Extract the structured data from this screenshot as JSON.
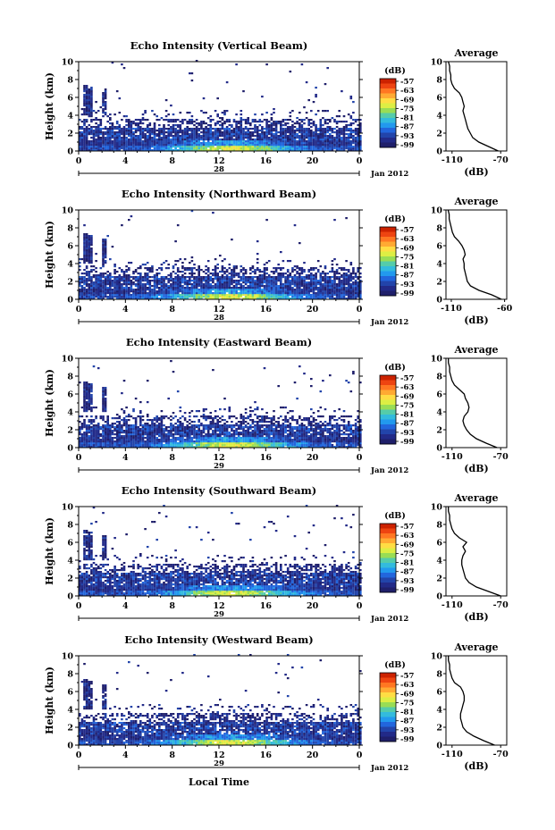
{
  "figure": {
    "xlabel": "Local Time"
  },
  "colorbar": {
    "label": "(dB)",
    "ticks": [
      "-57",
      "-63",
      "-69",
      "-75",
      "-81",
      "-87",
      "-93",
      "-99"
    ],
    "colors": [
      "#cc2200",
      "#ee4411",
      "#ff7722",
      "#ffaa33",
      "#ffdd44",
      "#ddee44",
      "#99dd55",
      "#55ccaa",
      "#33bbdd",
      "#2299ee",
      "#2266dd",
      "#2244aa",
      "#222a88",
      "#1f1f6a"
    ]
  },
  "profile_panel": {
    "title": "Average",
    "xlabel": "(dB)",
    "yticks": [
      "0",
      "2",
      "4",
      "6",
      "8",
      "10"
    ]
  },
  "main_axes": {
    "ylabel": "Height (km)",
    "yticks": [
      "0",
      "2",
      "4",
      "6",
      "8",
      "10"
    ],
    "xticks": [
      "0",
      "4",
      "8",
      "12",
      "16",
      "20",
      "0"
    ],
    "date_label": "Jan 2012"
  },
  "chart_data": [
    {
      "type": "heatmap",
      "title": "Echo Intensity (Vertical Beam)",
      "xlabel": "",
      "ylabel": "Height (km)",
      "xlim": [
        0,
        24
      ],
      "ylim": [
        0,
        10
      ],
      "day_label": "28",
      "date_label": "Jan 2012",
      "profile": {
        "title": "Average",
        "xlabel": "(dB)",
        "xticks": [
          "-110",
          "-70"
        ],
        "xlim": [
          -115,
          -65
        ],
        "heights": [
          0,
          0.5,
          1,
          1.5,
          2,
          2.5,
          3,
          3.5,
          4,
          4.5,
          5,
          5.5,
          6,
          6.5,
          7,
          7.5,
          8,
          8.5,
          9,
          9.5,
          10
        ],
        "values": [
          -72,
          -80,
          -88,
          -93,
          -95,
          -97,
          -98,
          -99,
          -100,
          -101,
          -100,
          -101,
          -102,
          -104,
          -108,
          -110,
          -111,
          -111,
          -112,
          -112,
          -113
        ]
      }
    },
    {
      "type": "heatmap",
      "title": "Echo Intensity (Northward Beam)",
      "xlabel": "",
      "ylabel": "Height (km)",
      "xlim": [
        0,
        24
      ],
      "ylim": [
        0,
        10
      ],
      "day_label": "28",
      "date_label": "Jan 2012",
      "profile": {
        "title": "Average",
        "xlabel": "(dB)",
        "xticks": [
          "-110",
          "-60"
        ],
        "xlim": [
          -115,
          -58
        ],
        "heights": [
          0,
          0.5,
          1,
          1.5,
          2,
          2.5,
          3,
          3.5,
          4,
          4.5,
          5,
          5.5,
          6,
          6.5,
          7,
          7.5,
          8,
          8.5,
          9,
          9.5,
          10
        ],
        "values": [
          -63,
          -72,
          -84,
          -92,
          -95,
          -96,
          -97,
          -98,
          -98,
          -99,
          -97,
          -98,
          -100,
          -103,
          -107,
          -109,
          -110,
          -111,
          -112,
          -112,
          -113
        ]
      }
    },
    {
      "type": "heatmap",
      "title": "Echo Intensity (Eastward Beam)",
      "xlabel": "",
      "ylabel": "Height (km)",
      "xlim": [
        0,
        24
      ],
      "ylim": [
        0,
        10
      ],
      "day_label": "29",
      "date_label": "Jan 2012",
      "profile": {
        "title": "Average",
        "xlabel": "(dB)",
        "xticks": [
          "-110",
          "-70"
        ],
        "xlim": [
          -115,
          -65
        ],
        "heights": [
          0,
          0.5,
          1,
          1.5,
          2,
          2.5,
          3,
          3.5,
          4,
          4.5,
          5,
          5.5,
          6,
          6.5,
          7,
          7.5,
          8,
          8.5,
          9,
          9.5,
          10
        ],
        "values": [
          -73,
          -82,
          -90,
          -95,
          -98,
          -100,
          -101,
          -100,
          -97,
          -96,
          -97,
          -99,
          -100,
          -104,
          -108,
          -110,
          -111,
          -112,
          -112,
          -113,
          -113
        ]
      }
    },
    {
      "type": "heatmap",
      "title": "Echo Intensity (Southward Beam)",
      "xlabel": "",
      "ylabel": "Height (km)",
      "xlim": [
        0,
        24
      ],
      "ylim": [
        0,
        10
      ],
      "day_label": "29",
      "date_label": "Jan 2012",
      "profile": {
        "title": "Average",
        "xlabel": "(dB)",
        "xticks": [
          "-110",
          "-70"
        ],
        "xlim": [
          -115,
          -65
        ],
        "heights": [
          0,
          0.5,
          1,
          1.5,
          2,
          2.5,
          3,
          3.5,
          4,
          4.5,
          5,
          5.5,
          6,
          6.5,
          7,
          7.5,
          8,
          8.5,
          9,
          9.5,
          10
        ],
        "values": [
          -70,
          -80,
          -90,
          -96,
          -99,
          -100,
          -101,
          -102,
          -102,
          -101,
          -99,
          -101,
          -98,
          -104,
          -108,
          -110,
          -111,
          -112,
          -112,
          -113,
          -113
        ]
      }
    },
    {
      "type": "heatmap",
      "title": "Echo Intensity (Westward Beam)",
      "xlabel": "Local Time",
      "ylabel": "Height (km)",
      "xlim": [
        0,
        24
      ],
      "ylim": [
        0,
        10
      ],
      "day_label": "29",
      "date_label": "Jan 2012",
      "profile": {
        "title": "Average",
        "xlabel": "(dB)",
        "xticks": [
          "-110",
          "-70"
        ],
        "xlim": [
          -115,
          -65
        ],
        "heights": [
          0,
          0.5,
          1,
          1.5,
          2,
          2.5,
          3,
          3.5,
          4,
          4.5,
          5,
          5.5,
          6,
          6.5,
          7,
          7.5,
          8,
          8.5,
          9,
          9.5,
          10
        ],
        "values": [
          -75,
          -84,
          -92,
          -98,
          -101,
          -102,
          -103,
          -103,
          -102,
          -101,
          -100,
          -100,
          -101,
          -103,
          -108,
          -110,
          -111,
          -112,
          -112,
          -113,
          -113
        ]
      }
    }
  ]
}
